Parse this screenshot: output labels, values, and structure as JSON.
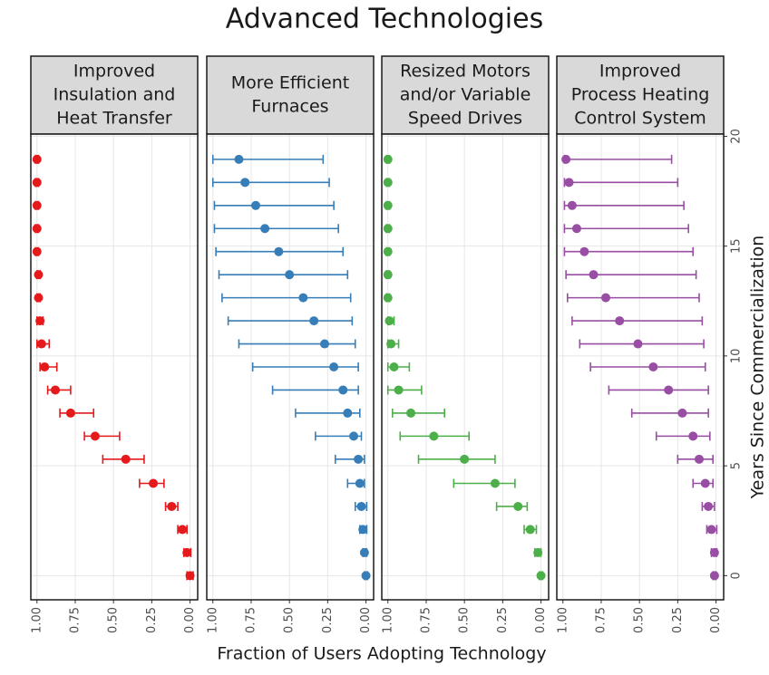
{
  "figure": {
    "title": "Advanced Technologies",
    "xlabel": "Fraction of Users Adopting Technology",
    "ylabel": "Years Since Commercialization"
  },
  "chart_data": [
    {
      "type": "errorpoint",
      "title": [
        "Improved",
        "Insulation and",
        "Heat Transfer"
      ],
      "color": "#e41a1c",
      "y": [
        0,
        1.05,
        2.1,
        3.15,
        4.2,
        5.3,
        6.35,
        7.4,
        8.45,
        9.5,
        10.55,
        11.6,
        12.65,
        13.7,
        14.75,
        15.8,
        16.85,
        17.9,
        18.95
      ],
      "values": [
        0.0,
        0.02,
        0.05,
        0.12,
        0.24,
        0.42,
        0.62,
        0.78,
        0.88,
        0.95,
        0.97,
        0.98,
        0.99,
        0.99,
        1.0,
        1.0,
        1.0,
        1.0,
        1.0
      ],
      "lo": [
        -0.02,
        -0.005,
        0.02,
        0.08,
        0.17,
        0.3,
        0.46,
        0.63,
        0.78,
        0.87,
        0.92,
        0.96,
        0.98,
        0.98,
        0.99,
        0.99,
        0.99,
        0.99,
        0.99
      ],
      "hi": [
        0.02,
        0.04,
        0.08,
        0.16,
        0.33,
        0.57,
        0.69,
        0.85,
        0.93,
        0.98,
        1.0,
        1.0,
        1.0,
        1.0,
        1.01,
        1.01,
        1.01,
        1.01,
        1.01
      ],
      "xlim": [
        1.04,
        -0.05
      ],
      "ylim": [
        -1.1,
        20.1
      ],
      "xticks": [
        {
          "value": 1,
          "label": "1.00"
        },
        {
          "value": 0.75,
          "label": "0.75"
        },
        {
          "value": 0.5,
          "label": "0.50"
        },
        {
          "value": 0.25,
          "label": "0.25"
        },
        {
          "value": 0,
          "label": "0.00"
        }
      ],
      "yticks": [
        0,
        5,
        10,
        15,
        20
      ],
      "grid": true
    },
    {
      "type": "errorpoint",
      "title": [
        "More Efficient",
        "Furnaces"
      ],
      "color": "#377eb8",
      "y": [
        0,
        1.05,
        2.1,
        3.15,
        4.2,
        5.3,
        6.35,
        7.4,
        8.45,
        9.5,
        10.55,
        11.6,
        12.65,
        13.7,
        14.75,
        15.8,
        16.85,
        17.9,
        18.95
      ],
      "values": [
        0.0,
        0.01,
        0.02,
        0.03,
        0.04,
        0.05,
        0.08,
        0.12,
        0.15,
        0.21,
        0.27,
        0.34,
        0.41,
        0.5,
        0.57,
        0.66,
        0.72,
        0.79,
        0.83
      ],
      "lo": [
        -0.01,
        -0.005,
        -0.005,
        -0.005,
        0.01,
        0.01,
        0.03,
        0.04,
        0.05,
        0.05,
        0.07,
        0.09,
        0.1,
        0.12,
        0.15,
        0.18,
        0.21,
        0.24,
        0.28
      ],
      "hi": [
        0.01,
        0.02,
        0.04,
        0.07,
        0.12,
        0.2,
        0.33,
        0.46,
        0.61,
        0.74,
        0.83,
        0.9,
        0.94,
        0.96,
        0.98,
        0.99,
        0.99,
        1.0,
        1.0
      ],
      "xlim": [
        1.04,
        -0.05
      ],
      "ylim": [
        -1.1,
        20.1
      ],
      "xticks": [
        {
          "value": 1,
          "label": "1.00"
        },
        {
          "value": 0.75,
          "label": "0.75"
        },
        {
          "value": 0.5,
          "label": "0.50"
        },
        {
          "value": 0.25,
          "label": "0.25"
        },
        {
          "value": 0,
          "label": "0.00"
        }
      ],
      "yticks": [
        0,
        5,
        10,
        15,
        20
      ],
      "grid": true
    },
    {
      "type": "errorpoint",
      "title": [
        "Resized Motors",
        "and/or Variable",
        "Speed Drives"
      ],
      "color": "#4daf4a",
      "y": [
        0,
        1.05,
        2.1,
        3.15,
        4.2,
        5.3,
        6.35,
        7.4,
        8.45,
        9.5,
        10.55,
        11.6,
        12.65,
        13.7,
        14.75,
        15.8,
        16.85,
        17.9,
        18.95
      ],
      "values": [
        0.0,
        0.02,
        0.07,
        0.15,
        0.3,
        0.5,
        0.7,
        0.85,
        0.93,
        0.96,
        0.98,
        0.99,
        1.0,
        1.0,
        1.0,
        1.0,
        1.0,
        1.0,
        1.0
      ],
      "lo": [
        -0.01,
        0.0,
        0.03,
        0.09,
        0.17,
        0.3,
        0.47,
        0.63,
        0.78,
        0.86,
        0.93,
        0.96,
        0.99,
        0.99,
        0.99,
        0.99,
        0.99,
        0.99,
        0.99
      ],
      "hi": [
        0.01,
        0.04,
        0.11,
        0.29,
        0.57,
        0.8,
        0.92,
        0.97,
        1.0,
        1.0,
        1.0,
        1.0,
        1.01,
        1.01,
        1.01,
        1.01,
        1.01,
        1.01,
        1.01
      ],
      "xlim": [
        1.04,
        -0.05
      ],
      "ylim": [
        -1.1,
        20.1
      ],
      "xticks": [
        {
          "value": 1,
          "label": "1.00"
        },
        {
          "value": 0.75,
          "label": "0.75"
        },
        {
          "value": 0.5,
          "label": "0.50"
        },
        {
          "value": 0.25,
          "label": "0.25"
        },
        {
          "value": 0,
          "label": "0.00"
        }
      ],
      "yticks": [
        0,
        5,
        10,
        15,
        20
      ],
      "grid": true
    },
    {
      "type": "errorpoint",
      "title": [
        "Improved",
        "Process Heating",
        "Control System"
      ],
      "color": "#984ea3",
      "y": [
        0,
        1.05,
        2.1,
        3.15,
        4.2,
        5.3,
        6.35,
        7.4,
        8.45,
        9.5,
        10.55,
        11.6,
        12.65,
        13.7,
        14.75,
        15.8,
        16.85,
        17.9,
        18.95
      ],
      "values": [
        0.01,
        0.01,
        0.03,
        0.05,
        0.07,
        0.11,
        0.15,
        0.22,
        0.31,
        0.41,
        0.51,
        0.63,
        0.72,
        0.8,
        0.86,
        0.91,
        0.94,
        0.96,
        0.98
      ],
      "lo": [
        0.0,
        -0.005,
        -0.005,
        0.01,
        0.02,
        0.02,
        0.04,
        0.05,
        0.05,
        0.07,
        0.08,
        0.09,
        0.11,
        0.13,
        0.15,
        0.18,
        0.21,
        0.25,
        0.29
      ],
      "hi": [
        0.02,
        0.03,
        0.06,
        0.09,
        0.15,
        0.25,
        0.39,
        0.55,
        0.7,
        0.82,
        0.89,
        0.94,
        0.97,
        0.98,
        0.99,
        0.99,
        0.99,
        0.99,
        0.99
      ],
      "xlim": [
        1.04,
        -0.05
      ],
      "ylim": [
        -1.1,
        20.1
      ],
      "xticks": [
        {
          "value": 1,
          "label": "1.00"
        },
        {
          "value": 0.75,
          "label": "0.75"
        },
        {
          "value": 0.5,
          "label": "0.50"
        },
        {
          "value": 0.25,
          "label": "0.25"
        },
        {
          "value": 0,
          "label": "0.00"
        }
      ],
      "yticks": [
        0,
        5,
        10,
        15,
        20
      ],
      "grid": true
    }
  ]
}
